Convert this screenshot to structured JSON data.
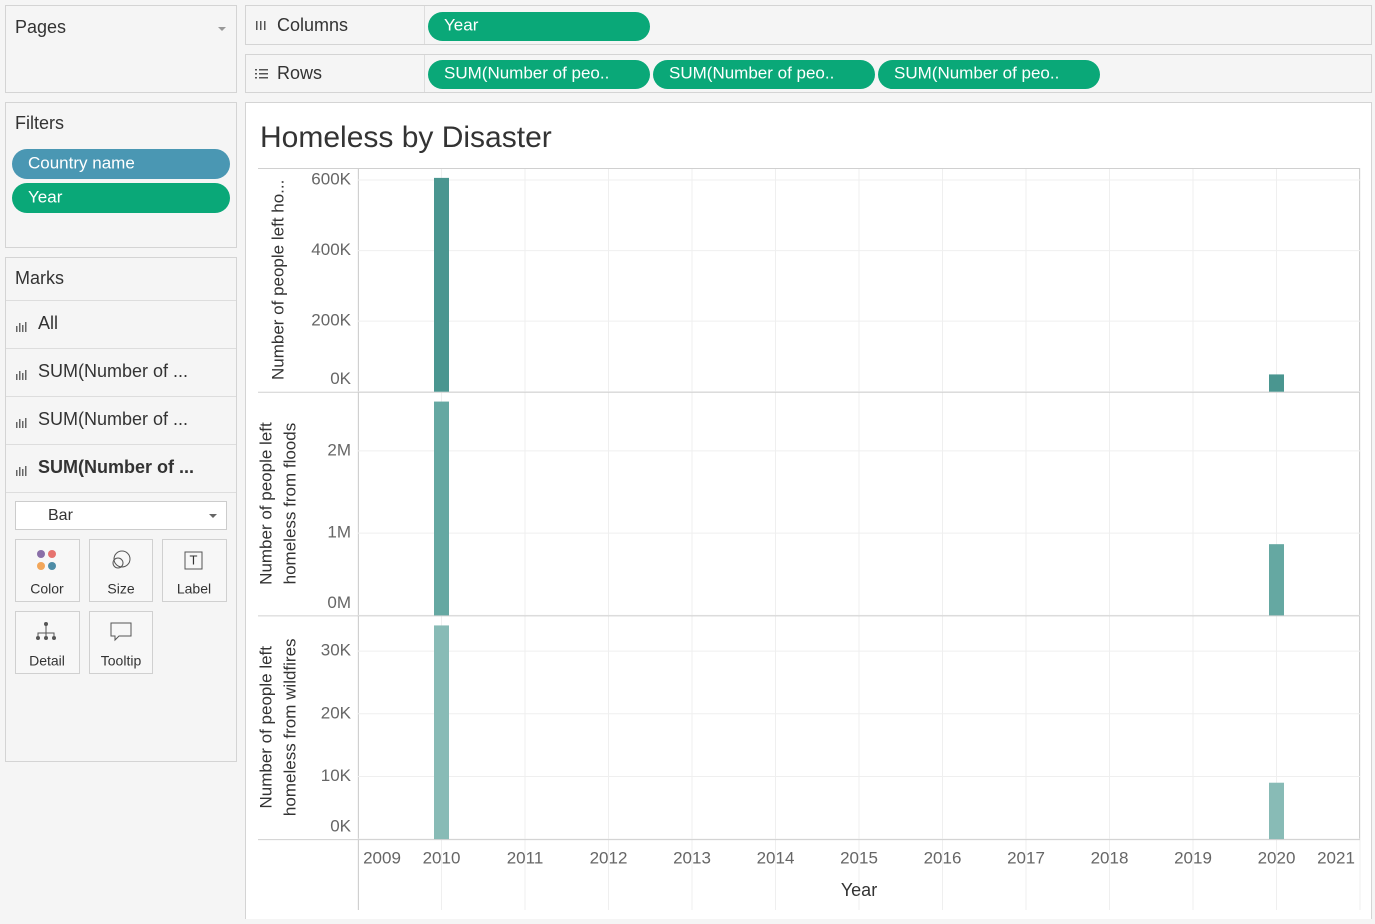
{
  "pages": {
    "title": "Pages"
  },
  "shelves": {
    "columns": {
      "label": "Columns",
      "pills": [
        "Year"
      ]
    },
    "rows": {
      "label": "Rows",
      "pills": [
        "SUM(Number of peo..",
        "SUM(Number of peo..",
        "SUM(Number of peo.."
      ]
    }
  },
  "filters": {
    "title": "Filters",
    "pills": [
      "Country name",
      "Year"
    ]
  },
  "marks": {
    "title": "Marks",
    "items": [
      "All",
      "SUM(Number of ...",
      "SUM(Number of ...",
      "SUM(Number of ..."
    ],
    "mark_type": "Bar",
    "buttons": [
      "Color",
      "Size",
      "Label",
      "Detail",
      "Tooltip"
    ]
  },
  "sheet_title": "Homeless by Disaster",
  "chart_data": [
    {
      "type": "bar",
      "y_label": [
        "Number of people left ho..."
      ],
      "x": [
        2010,
        2020
      ],
      "values": [
        606000,
        49000
      ],
      "color": "#4a9690",
      "xlim": [
        2009,
        2021
      ],
      "ylim": [
        0,
        634000
      ],
      "yticks": [
        {
          "value": 0,
          "label": "0K"
        },
        {
          "value": 200000,
          "label": "200K"
        },
        {
          "value": 400000,
          "label": "400K"
        },
        {
          "value": 600000,
          "label": "600K"
        }
      ],
      "grid": true
    },
    {
      "type": "bar",
      "y_label": [
        "Number of people left",
        "homeless from floods"
      ],
      "x": [
        2010,
        2020
      ],
      "values": [
        2600000,
        866000
      ],
      "color": "#65a8a2",
      "xlim": [
        2009,
        2021
      ],
      "ylim": [
        0,
        2720000
      ],
      "yticks": [
        {
          "value": 0,
          "label": "0M"
        },
        {
          "value": 1000000,
          "label": "1M"
        },
        {
          "value": 2000000,
          "label": "2M"
        }
      ],
      "grid": true
    },
    {
      "type": "bar",
      "y_label": [
        "Number of people left",
        "homeless from wildfires"
      ],
      "x": [
        2010,
        2020
      ],
      "values": [
        34100,
        9000
      ],
      "color": "#88bbb6",
      "xlim": [
        2009,
        2021
      ],
      "ylim": [
        0,
        35700
      ],
      "yticks": [
        {
          "value": 0,
          "label": "0K"
        },
        {
          "value": 10000,
          "label": "10K"
        },
        {
          "value": 20000,
          "label": "20K"
        },
        {
          "value": 30000,
          "label": "30K"
        }
      ],
      "grid": true,
      "x_label": "Year",
      "xticks": [
        2009,
        2010,
        2011,
        2012,
        2013,
        2014,
        2015,
        2016,
        2017,
        2018,
        2019,
        2020,
        2021
      ]
    }
  ]
}
